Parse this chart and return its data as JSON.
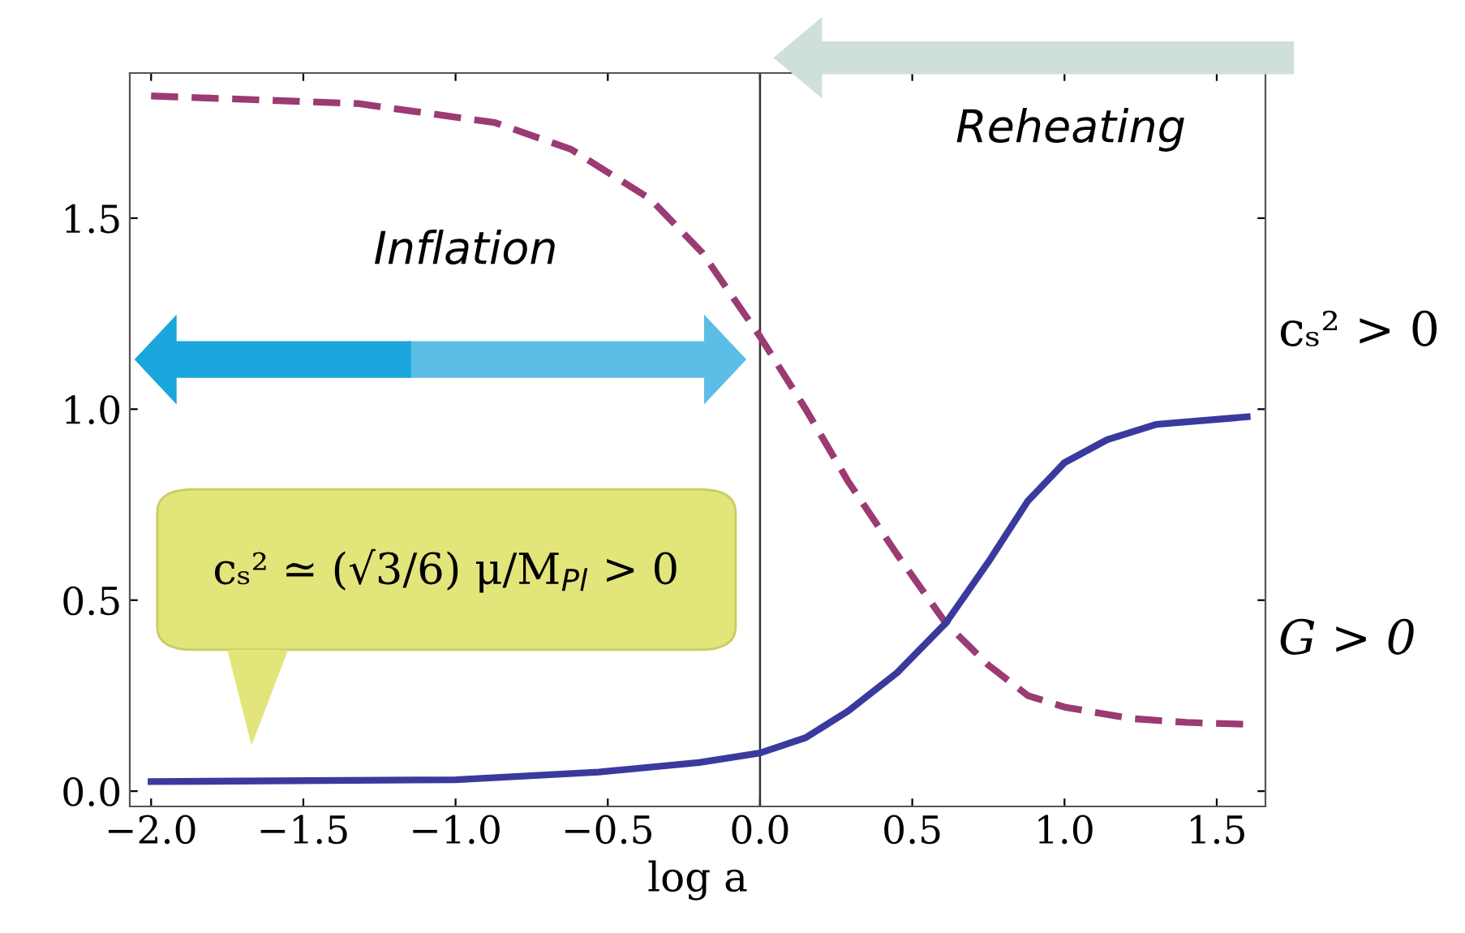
{
  "chart_data": {
    "type": "line",
    "xlabel": "log a",
    "xlim": [
      -2.07,
      1.66
    ],
    "ylim": [
      -0.04,
      1.88
    ],
    "xticks": [
      {
        "value": -2.0,
        "label": "−2.0"
      },
      {
        "value": -1.5,
        "label": "−1.5"
      },
      {
        "value": -1.0,
        "label": "−1.0"
      },
      {
        "value": -0.5,
        "label": "−0.5"
      },
      {
        "value": 0.0,
        "label": "0.0"
      },
      {
        "value": 0.5,
        "label": "0.5"
      },
      {
        "value": 1.0,
        "label": "1.0"
      },
      {
        "value": 1.5,
        "label": "1.5"
      }
    ],
    "yticks": [
      {
        "value": 0.0,
        "label": "0.0"
      },
      {
        "value": 0.5,
        "label": "0.5"
      },
      {
        "value": 1.0,
        "label": "1.0"
      },
      {
        "value": 1.5,
        "label": "1.5"
      }
    ],
    "grid": false,
    "series": [
      {
        "color": "#9b3a73",
        "line_style": "dashed",
        "x": [
          -2.0,
          -1.32,
          -0.87,
          -0.62,
          -0.36,
          -0.19,
          0.0,
          0.15,
          0.29,
          0.45,
          0.61,
          0.75,
          0.88,
          1.0,
          1.22,
          1.4,
          1.6
        ],
        "values": [
          1.82,
          1.8,
          1.75,
          1.68,
          1.55,
          1.41,
          1.19,
          1.0,
          0.81,
          0.62,
          0.44,
          0.33,
          0.25,
          0.22,
          0.19,
          0.18,
          0.175
        ]
      },
      {
        "color": "#3a3a9e",
        "line_style": "solid",
        "x": [
          -2.0,
          -1.0,
          -0.53,
          -0.2,
          0.0,
          0.15,
          0.29,
          0.45,
          0.61,
          0.75,
          0.88,
          1.0,
          1.14,
          1.3,
          1.6
        ],
        "values": [
          0.025,
          0.03,
          0.05,
          0.075,
          0.1,
          0.14,
          0.21,
          0.31,
          0.44,
          0.6,
          0.76,
          0.86,
          0.92,
          0.96,
          0.98
        ]
      }
    ],
    "ref_lines": [
      {
        "axis": "x",
        "value": 0.0,
        "label": null,
        "color": "#333333"
      }
    ],
    "annotations": [
      "Inflation",
      "Reheating",
      "cₛ² > 0",
      "G > 0",
      "cₛ² ≃ (√3/6) μ/M$_{Pl}$ > 0"
    ]
  }
}
